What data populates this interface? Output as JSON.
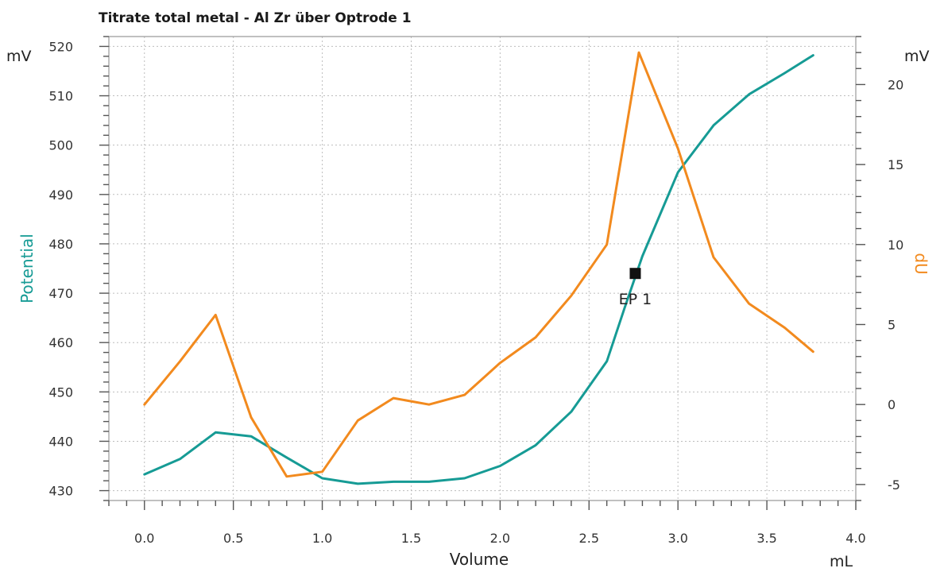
{
  "chart_data": {
    "type": "line",
    "title": "Titrate total metal - Al Zr über Optrode  1",
    "xlabel": "Volume",
    "xunit": "mL",
    "ylabel_left": "Potential",
    "yunit_left": "mV",
    "ylabel_right": "dU",
    "yunit_right": "mV",
    "xlim": [
      -0.2,
      4.0
    ],
    "ylim_left": [
      428,
      522
    ],
    "ylim_right": [
      -6,
      23
    ],
    "x_ticks": [
      0.0,
      0.5,
      1.0,
      1.5,
      2.0,
      2.5,
      3.0,
      3.5,
      4.0
    ],
    "x_tick_labels": [
      "0.0",
      "0.5",
      "1.0",
      "1.5",
      "2.0",
      "2.5",
      "3.0",
      "3.5",
      "4.0"
    ],
    "y_left_ticks": [
      430,
      440,
      450,
      460,
      470,
      480,
      490,
      500,
      510,
      520
    ],
    "y_right_ticks": [
      -5,
      0,
      5,
      10,
      15,
      20
    ],
    "grid": true,
    "colors": {
      "potential": "#169b95",
      "du": "#f28a1e",
      "endpoint": "#111111"
    },
    "series": [
      {
        "name": "Potential",
        "axis": "left",
        "x": [
          0.0,
          0.2,
          0.4,
          0.6,
          0.8,
          1.0,
          1.2,
          1.4,
          1.6,
          1.8,
          2.0,
          2.2,
          2.4,
          2.6,
          2.7,
          2.8,
          3.0,
          3.2,
          3.4,
          3.6,
          3.76
        ],
        "y": [
          433.3,
          436.4,
          441.8,
          441.0,
          436.7,
          432.5,
          431.4,
          431.8,
          431.8,
          432.5,
          435.0,
          439.2,
          446.0,
          456.2,
          467.0,
          477.5,
          494.5,
          504.0,
          510.3,
          514.6,
          518.2
        ]
      },
      {
        "name": "dU",
        "axis": "right",
        "x": [
          0.0,
          0.2,
          0.4,
          0.6,
          0.8,
          1.0,
          1.2,
          1.4,
          1.6,
          1.8,
          2.0,
          2.2,
          2.4,
          2.6,
          2.78,
          3.0,
          3.2,
          3.4,
          3.6,
          3.76
        ],
        "y": [
          0.0,
          2.7,
          5.6,
          -0.8,
          -4.5,
          -4.2,
          -1.0,
          0.4,
          0.0,
          0.6,
          2.6,
          4.2,
          6.8,
          10.0,
          22.0,
          16.0,
          9.2,
          6.3,
          4.8,
          3.3
        ]
      }
    ],
    "endpoint": {
      "label": "EP 1",
      "x": 2.76,
      "y": 474.0
    }
  }
}
